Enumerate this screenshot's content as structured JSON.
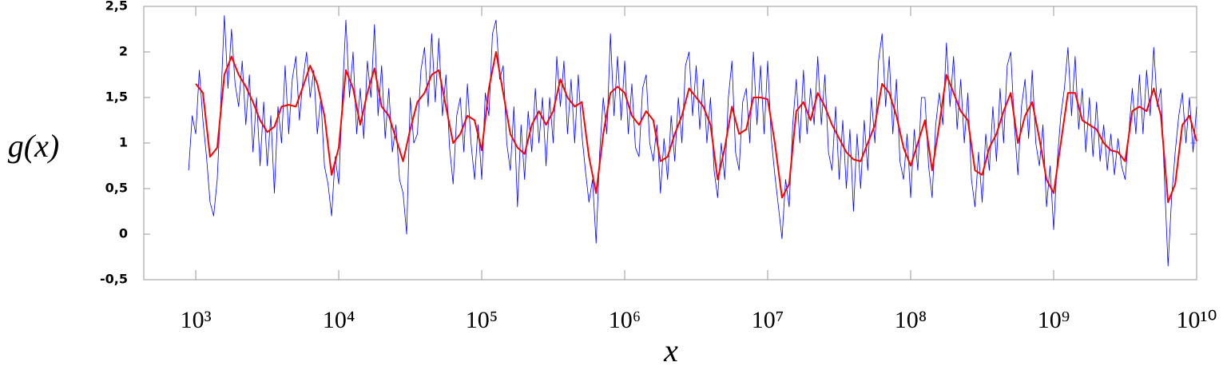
{
  "chart_data": {
    "type": "line",
    "ylabel": "g(x)",
    "xlabel": "x",
    "xscale": "log",
    "xlim": [
      433,
      10000000000.0
    ],
    "ylim": [
      -0.5,
      2.5
    ],
    "xticks": [
      {
        "value": 1000.0,
        "label": "10³"
      },
      {
        "value": 10000.0,
        "label": "10⁴"
      },
      {
        "value": 100000.0,
        "label": "10⁵"
      },
      {
        "value": 1000000.0,
        "label": "10⁶"
      },
      {
        "value": 10000000.0,
        "label": "10⁷"
      },
      {
        "value": 100000000.0,
        "label": "10⁸"
      },
      {
        "value": 1000000000.0,
        "label": "10⁹"
      },
      {
        "value": 10000000000.0,
        "label": "10¹⁰"
      }
    ],
    "yticks": [
      {
        "value": 2.5,
        "label": "2,5"
      },
      2,
      {
        "value": 1.5,
        "label": "1,5"
      },
      1,
      {
        "value": 0.5,
        "label": "0,5"
      },
      0,
      {
        "value": -0.5,
        "label": "-0,5"
      }
    ],
    "grid": false,
    "series": [
      {
        "color": "#0000ff",
        "x": [
          891.3,
          944.1,
          1000.0,
          1059.0,
          1122.0,
          1189.0,
          1259.0,
          1334.0,
          1413.0,
          1496.0,
          1585.0,
          1679.0,
          1778.0,
          1884.0,
          1995.0,
          2113.0,
          2239.0,
          2371.0,
          2512.0,
          2661.0,
          2818.0,
          2985.0,
          3162.0,
          3350.0,
          3548.0,
          3758.0,
          3981.0,
          4217.0,
          4467.0,
          4732.0,
          5012.0,
          5309.0,
          5623.0,
          5957.0,
          6310.0,
          6683.0,
          7079.0,
          7499.0,
          7943.0,
          8414.0,
          8913.0,
          9441.0,
          10000.0,
          10590.0,
          11220.0,
          11890.0,
          12590.0,
          13340.0,
          14130.0,
          14960.0,
          15850.0,
          16790.0,
          17780.0,
          18840.0,
          19950.0,
          21130.0,
          22390.0,
          23710.0,
          25120.0,
          26610.0,
          28180.0,
          29850.0,
          31620.0,
          33500.0,
          35480.0,
          37580.0,
          39810.0,
          42170.0,
          44670.0,
          47320.0,
          50120.0,
          53090.0,
          56230.0,
          59570.0,
          63100.0,
          66830.0,
          70790.0,
          74990.0,
          79430.0,
          84140.0,
          89130.0,
          94410.0,
          100000.0,
          105900.0,
          112200.0,
          118900.0,
          125900.0,
          133400.0,
          141300.0,
          149600.0,
          158500.0,
          167900.0,
          177800.0,
          188400.0,
          199500.0,
          211300.0,
          223900.0,
          237100.0,
          251200.0,
          266100.0,
          281800.0,
          298500.0,
          316200.0,
          335000.0,
          354800.0,
          375800.0,
          398100.0,
          421700.0,
          446700.0,
          473200.0,
          501200.0,
          530900.0,
          562300.0,
          595700.0,
          631000.0,
          668300.0,
          707900.0,
          749900.0,
          794300.0,
          841400.0,
          891300.0,
          944100.0,
          1000000.0,
          1059000.0,
          1122000.0,
          1189000.0,
          1259000.0,
          1334000.0,
          1413000.0,
          1496000.0,
          1585000.0,
          1679000.0,
          1778000.0,
          1884000.0,
          1995000.0,
          2113000.0,
          2239000.0,
          2371000.0,
          2512000.0,
          2661000.0,
          2818000.0,
          2985000.0,
          3162000.0,
          3350000.0,
          3548000.0,
          3758000.0,
          3981000.0,
          4217000.0,
          4467000.0,
          4732000.0,
          5012000.0,
          5309000.0,
          5623000.0,
          5957000.0,
          6310000.0,
          6683000.0,
          7079000.0,
          7499000.0,
          7943000.0,
          8414000.0,
          8913000.0,
          9441000.0,
          10000000.0,
          10590000.0,
          11220000.0,
          11890000.0,
          12590000.0,
          13340000.0,
          14130000.0,
          14960000.0,
          15850000.0,
          16790000.0,
          17780000.0,
          18840000.0,
          19950000.0,
          21130000.0,
          22390000.0,
          23710000.0,
          25120000.0,
          26610000.0,
          28180000.0,
          29850000.0,
          31620000.0,
          33500000.0,
          35480000.0,
          37580000.0,
          39810000.0,
          42170000.0,
          44670000.0,
          47320000.0,
          50120000.0,
          53090000.0,
          56230000.0,
          59570000.0,
          63100000.0,
          66830000.0,
          70790000.0,
          74990000.0,
          79430000.0,
          84140000.0,
          89130000.0,
          94410000.0,
          100000000.0,
          105900000.0,
          112200000.0,
          118900000.0,
          125900000.0,
          133400000.0,
          141300000.0,
          149600000.0,
          158500000.0,
          167900000.0,
          177800000.0,
          188400000.0,
          199500000.0,
          211300000.0,
          223900000.0,
          237100000.0,
          251200000.0,
          266100000.0,
          281800000.0,
          298500000.0,
          316200000.0,
          335000000.0,
          354800000.0,
          375800000.0,
          398100000.0,
          421700000.0,
          446700000.0,
          473200000.0,
          501200000.0,
          530900000.0,
          562300000.0,
          595700000.0,
          631000000.0,
          668300000.0,
          707900000.0,
          749900000.0,
          794300000.0,
          841400000.0,
          891300000.0,
          944100000.0,
          1000000000.0,
          1059000000.0,
          1122000000.0,
          1189000000.0,
          1259000000.0,
          1334000000.0,
          1413000000.0,
          1496000000.0,
          1585000000.0,
          1679000000.0,
          1778000000.0,
          1884000000.0,
          1995000000.0,
          2113000000.0,
          2239000000.0,
          2371000000.0,
          2512000000.0,
          2661000000.0,
          2818000000.0,
          2985000000.0,
          3162000000.0,
          3350000000.0,
          3548000000.0,
          3758000000.0,
          3981000000.0,
          4217000000.0,
          4467000000.0,
          4732000000.0,
          5012000000.0,
          5309000000.0,
          5623000000.0,
          5957000000.0,
          6310000000.0,
          6683000000.0,
          7079000000.0,
          7499000000.0,
          7943000000.0,
          8414000000.0,
          8913000000.0,
          9441000000.0,
          10000000000.0
        ],
        "values": [
          0.7,
          1.3,
          1.1,
          1.8,
          1.25,
          0.85,
          0.35,
          0.2,
          0.6,
          1.45,
          2.4,
          1.6,
          2.25,
          1.65,
          1.4,
          1.9,
          1.2,
          1.75,
          0.9,
          1.5,
          0.75,
          1.45,
          0.75,
          1.3,
          0.45,
          1.4,
          1.0,
          1.85,
          1.1,
          1.7,
          1.95,
          1.25,
          1.7,
          2.0,
          1.5,
          1.8,
          1.1,
          1.5,
          0.75,
          0.55,
          0.2,
          0.85,
          0.55,
          1.5,
          2.35,
          1.5,
          2.0,
          1.1,
          1.6,
          1.05,
          1.9,
          1.5,
          2.3,
          1.3,
          1.85,
          1.05,
          1.6,
          0.9,
          1.2,
          0.6,
          0.45,
          0.0,
          1.5,
          1.0,
          1.1,
          1.8,
          2.05,
          1.4,
          2.2,
          1.45,
          2.15,
          1.3,
          1.75,
          0.95,
          0.55,
          1.3,
          1.5,
          0.9,
          1.65,
          1.0,
          0.6,
          1.2,
          0.6,
          1.55,
          1.3,
          2.2,
          2.35,
          1.7,
          1.85,
          1.0,
          0.7,
          1.4,
          0.3,
          1.2,
          0.6,
          1.35,
          0.9,
          1.6,
          1.0,
          1.5,
          0.75,
          1.5,
          1.0,
          1.95,
          1.4,
          1.9,
          1.1,
          1.7,
          1.0,
          1.75,
          1.1,
          0.7,
          0.35,
          0.6,
          -0.1,
          0.9,
          1.5,
          1.1,
          2.2,
          1.3,
          1.95,
          1.25,
          1.9,
          1.1,
          1.65,
          0.95,
          0.85,
          1.6,
          1.75,
          1.0,
          0.8,
          1.2,
          0.45,
          1.05,
          0.6,
          1.3,
          0.8,
          1.5,
          1.0,
          1.85,
          2.0,
          1.3,
          1.85,
          1.15,
          1.7,
          1.0,
          1.5,
          0.7,
          0.4,
          1.0,
          0.6,
          1.5,
          1.9,
          0.9,
          0.7,
          1.45,
          1.6,
          1.0,
          2.0,
          1.2,
          1.85,
          1.1,
          1.9,
          1.05,
          0.65,
          0.3,
          -0.05,
          0.6,
          0.3,
          1.2,
          1.7,
          1.0,
          1.8,
          1.1,
          1.6,
          1.2,
          1.95,
          1.2,
          1.75,
          0.9,
          0.7,
          1.4,
          0.6,
          1.25,
          0.5,
          1.15,
          0.25,
          1.1,
          0.5,
          1.25,
          0.7,
          1.5,
          1.0,
          1.9,
          2.2,
          1.4,
          1.95,
          1.1,
          1.7,
          0.8,
          0.6,
          1.1,
          0.4,
          1.15,
          0.7,
          1.5,
          1.5,
          0.75,
          0.4,
          1.2,
          1.55,
          1.2,
          2.1,
          1.4,
          1.95,
          1.15,
          1.7,
          1.0,
          1.55,
          0.6,
          0.3,
          0.9,
          0.35,
          1.1,
          0.7,
          1.4,
          0.8,
          1.6,
          1.0,
          1.85,
          2.0,
          1.2,
          0.65,
          1.4,
          1.7,
          1.05,
          1.8,
          1.0,
          0.75,
          1.2,
          0.3,
          0.75,
          0.05,
          0.8,
          1.3,
          1.6,
          2.05,
          1.3,
          1.95,
          1.15,
          1.6,
          0.9,
          1.5,
          0.85,
          1.45,
          0.8,
          1.2,
          0.7,
          1.1,
          0.65,
          1.05,
          0.75,
          0.6,
          1.1,
          1.6,
          1.1,
          1.75,
          1.1,
          1.8,
          1.3,
          2.05,
          1.4,
          1.6,
          0.6,
          -0.35,
          0.4,
          0.9,
          1.3,
          1.55,
          1.0,
          1.5,
          0.9,
          1.4
        ]
      },
      {
        "color": "#ff0000",
        "x": [
          1000.0,
          1122.0,
          1259.0,
          1413.0,
          1585.0,
          1778.0,
          1995.0,
          2239.0,
          2512.0,
          2818.0,
          3162.0,
          3548.0,
          3981.0,
          4467.0,
          5012.0,
          5623.0,
          6310.0,
          7079.0,
          7943.0,
          8913.0,
          10000.0,
          11220.0,
          12590.0,
          14130.0,
          15850.0,
          17780.0,
          19950.0,
          22390.0,
          25120.0,
          28180.0,
          31620.0,
          35480.0,
          39810.0,
          44670.0,
          50120.0,
          56230.0,
          63100.0,
          70790.0,
          79430.0,
          89130.0,
          100000.0,
          112200.0,
          125900.0,
          141300.0,
          158500.0,
          177800.0,
          199500.0,
          223900.0,
          251200.0,
          281800.0,
          316200.0,
          354800.0,
          398100.0,
          446700.0,
          501200.0,
          562300.0,
          631000.0,
          707900.0,
          794300.0,
          891300.0,
          1000000.0,
          1122000.0,
          1259000.0,
          1413000.0,
          1585000.0,
          1778000.0,
          1995000.0,
          2239000.0,
          2512000.0,
          2818000.0,
          3162000.0,
          3548000.0,
          3981000.0,
          4467000.0,
          5012000.0,
          5623000.0,
          6310000.0,
          7079000.0,
          7943000.0,
          8913000.0,
          10000000.0,
          11220000.0,
          12590000.0,
          14130000.0,
          15850000.0,
          17780000.0,
          19950000.0,
          22390000.0,
          25120000.0,
          28180000.0,
          31620000.0,
          35480000.0,
          39810000.0,
          44670000.0,
          50120000.0,
          56230000.0,
          63100000.0,
          70790000.0,
          79430000.0,
          89130000.0,
          100000000.0,
          112200000.0,
          125900000.0,
          141300000.0,
          158500000.0,
          177800000.0,
          199500000.0,
          223900000.0,
          251200000.0,
          281800000.0,
          316200000.0,
          354800000.0,
          398100000.0,
          446700000.0,
          501200000.0,
          562300000.0,
          631000000.0,
          707900000.0,
          794300000.0,
          891300000.0,
          1000000000.0,
          1122000000.0,
          1259000000.0,
          1413000000.0,
          1585000000.0,
          1778000000.0,
          1995000000.0,
          2239000000.0,
          2512000000.0,
          2818000000.0,
          3162000000.0,
          3548000000.0,
          3981000000.0,
          4467000000.0,
          5012000000.0,
          5623000000.0,
          6310000000.0,
          7079000000.0,
          7943000000.0,
          8913000000.0,
          10000000000.0
        ],
        "values": [
          1.65,
          1.55,
          0.85,
          0.95,
          1.75,
          1.95,
          1.75,
          1.62,
          1.45,
          1.25,
          1.12,
          1.18,
          1.4,
          1.42,
          1.4,
          1.62,
          1.85,
          1.65,
          1.3,
          0.65,
          0.95,
          1.8,
          1.6,
          1.2,
          1.55,
          1.82,
          1.4,
          1.3,
          1.05,
          0.8,
          1.15,
          1.45,
          1.55,
          1.75,
          1.8,
          1.4,
          1.0,
          1.1,
          1.3,
          1.25,
          0.92,
          1.6,
          2.0,
          1.55,
          1.1,
          0.95,
          0.88,
          1.2,
          1.35,
          1.2,
          1.35,
          1.7,
          1.5,
          1.4,
          1.45,
          0.85,
          0.45,
          1.1,
          1.55,
          1.62,
          1.55,
          1.3,
          1.2,
          1.35,
          1.25,
          0.8,
          0.85,
          1.1,
          1.3,
          1.6,
          1.5,
          1.4,
          1.2,
          0.6,
          0.95,
          1.4,
          1.1,
          1.15,
          1.5,
          1.5,
          1.48,
          1.0,
          0.4,
          0.55,
          1.35,
          1.45,
          1.25,
          1.55,
          1.4,
          1.2,
          1.05,
          0.9,
          0.82,
          0.8,
          1.0,
          1.2,
          1.65,
          1.55,
          1.3,
          0.95,
          0.75,
          1.0,
          1.25,
          0.7,
          1.2,
          1.75,
          1.55,
          1.35,
          1.25,
          0.7,
          0.65,
          0.95,
          1.1,
          1.35,
          1.55,
          1.0,
          1.3,
          1.45,
          1.05,
          0.6,
          0.45,
          1.0,
          1.55,
          1.55,
          1.25,
          1.2,
          1.15,
          1.0,
          0.92,
          0.9,
          0.8,
          1.35,
          1.4,
          1.35,
          1.6,
          1.3,
          0.35,
          0.55,
          1.2,
          1.3,
          1.02
        ]
      }
    ]
  }
}
